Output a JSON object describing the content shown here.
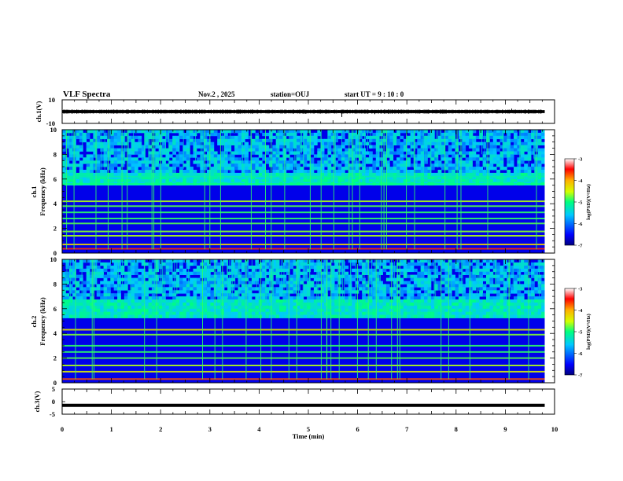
{
  "header": {
    "title": "VLF Spectra",
    "date": "Nov.2  , 2025",
    "station": "station=OUJ",
    "start_ut": "start  UT  =   9  : 10 : 0"
  },
  "chart_data": [
    {
      "id": "ch1-waveform",
      "type": "line",
      "ylabel": "ch.1(V)",
      "ylim": [
        -10,
        10
      ],
      "yticks": [
        "10",
        "-10"
      ],
      "xlim": [
        0,
        10
      ],
      "trace_end_min": 9.8,
      "baseline_v": 0,
      "noise_amplitude_v": 1.2,
      "spikes": [
        {
          "t_min": 5.68,
          "v": -4.6
        },
        {
          "t_min": 9.13,
          "v": 2.5
        },
        {
          "t_min": 4.95,
          "v": -2.0
        },
        {
          "t_min": 6.35,
          "v": -2.2
        }
      ]
    },
    {
      "id": "ch1-spectrogram",
      "type": "heatmap",
      "ylabel_line1": "ch.1",
      "ylabel_line2": "Frequency  (kHz)",
      "ylim": [
        0,
        10
      ],
      "yticks": [
        "0",
        "2",
        "4",
        "6",
        "8",
        "10"
      ],
      "xlim": [
        0,
        10
      ],
      "data_end_min": 9.8,
      "colorbar": {
        "label": "log(PSD)(V²/Hz)",
        "range": [
          -7,
          -3
        ],
        "ticks": [
          "-3",
          "-4",
          "-5",
          "-6",
          "-7"
        ]
      },
      "bands_khz": [
        {
          "f": 0.35,
          "level": -3.6
        },
        {
          "f": 0.7,
          "level": -4.2
        },
        {
          "f": 1.4,
          "level": -4.6
        },
        {
          "f": 1.75,
          "level": -4.7
        },
        {
          "f": 2.4,
          "level": -4.8
        },
        {
          "f": 2.8,
          "level": -4.9
        },
        {
          "f": 3.3,
          "level": -4.9
        },
        {
          "f": 3.8,
          "level": -4.8
        },
        {
          "f": 4.2,
          "level": -4.6
        },
        {
          "f": 5.6,
          "level": -5.0
        },
        {
          "f": 6.2,
          "level": -5.2
        }
      ],
      "broadband_band_khz": [
        5.5,
        6.6
      ],
      "upper_noise_khz": [
        6.6,
        10
      ]
    },
    {
      "id": "ch2-spectrogram",
      "type": "heatmap",
      "ylabel_line1": "ch.2",
      "ylabel_line2": "Frequency  (kHz)",
      "ylim": [
        0,
        10
      ],
      "yticks": [
        "0",
        "2",
        "4",
        "6",
        "8",
        "10"
      ],
      "xlim": [
        0,
        10
      ],
      "data_end_min": 9.8,
      "colorbar": {
        "label": "log(PSD)(V²/Hz)",
        "range": [
          -7,
          -3
        ],
        "ticks": [
          "-3",
          "-4",
          "-5",
          "-6",
          "-7"
        ]
      },
      "bands_khz": [
        {
          "f": 0.3,
          "level": -3.7
        },
        {
          "f": 0.9,
          "level": -4.4
        },
        {
          "f": 1.4,
          "level": -4.6
        },
        {
          "f": 2.0,
          "level": -4.8
        },
        {
          "f": 2.5,
          "level": -4.9
        },
        {
          "f": 3.0,
          "level": -4.9
        },
        {
          "f": 3.9,
          "level": -4.7
        },
        {
          "f": 4.3,
          "level": -4.3
        }
      ],
      "broadband_band_khz": [
        5.2,
        6.7
      ],
      "upper_noise_khz": [
        6.7,
        10
      ]
    },
    {
      "id": "ch3-waveform",
      "type": "line",
      "ylabel": "ch.3(V)",
      "ylim": [
        -5,
        5
      ],
      "yticks": [
        "5",
        "0",
        "-5"
      ],
      "xlim": [
        0,
        10
      ],
      "trace_end_min": 9.8,
      "constant_v": -1.5
    }
  ],
  "xaxis": {
    "label": "Time  (min)",
    "ticks": [
      "0",
      "1",
      "2",
      "3",
      "4",
      "5",
      "6",
      "7",
      "8",
      "9",
      "10"
    ]
  },
  "colors": {
    "background": "#ffffff",
    "axes": "#000000",
    "trace": "#000000"
  }
}
